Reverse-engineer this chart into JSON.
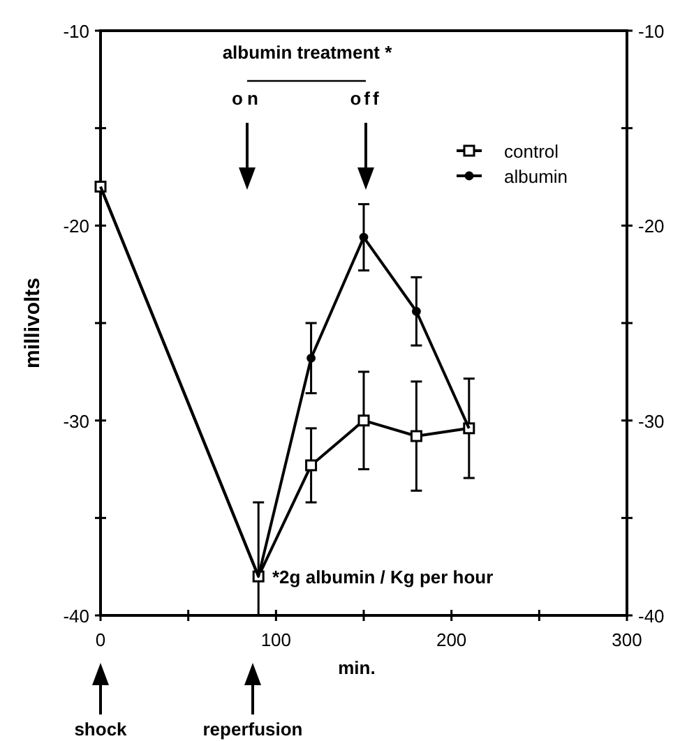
{
  "chart_data": {
    "type": "line",
    "xlabel": "min.",
    "ylabel": "millivolts",
    "xlim": [
      0,
      300
    ],
    "xticks": [
      0,
      {
        "value": 50,
        "label": null
      },
      100,
      {
        "value": 150,
        "label": null
      },
      200,
      {
        "value": 250,
        "label": null
      },
      300
    ],
    "ylim": [
      -40,
      -10
    ],
    "yticks": [
      -40,
      {
        "value": -35,
        "label": null
      },
      -30,
      {
        "value": -25,
        "label": null
      },
      -20,
      {
        "value": -15,
        "label": null
      },
      -10
    ],
    "y2lim": [
      -40,
      -10
    ],
    "y2ticks": [
      -40,
      {
        "value": -35,
        "label": null
      },
      -30,
      {
        "value": -25,
        "label": null
      },
      -20,
      {
        "value": -15,
        "label": null
      },
      -10
    ],
    "x": [
      0,
      90,
      120,
      150,
      180,
      210
    ],
    "series": [
      {
        "name": "control",
        "color": "#000000",
        "marker": "square",
        "values": [
          -18,
          -38,
          -32.3,
          -30.0,
          -30.8,
          -30.4
        ],
        "errors": [
          null,
          [
            -40,
            -34.2
          ],
          1.9,
          2.5,
          2.8,
          2.55
        ]
      },
      {
        "name": "albumin",
        "color": "#000000",
        "marker": "circle",
        "values": [
          -18,
          -38,
          -26.8,
          -20.6,
          -24.4,
          -30.4
        ],
        "errors": [
          null,
          null,
          1.8,
          1.7,
          1.75,
          null
        ]
      }
    ],
    "legend": "top right",
    "grid": false,
    "annotations": [
      "albumin treatment *",
      "on",
      "off",
      "*2g albumin / Kg per hour",
      "shock",
      "reperfusion"
    ]
  }
}
